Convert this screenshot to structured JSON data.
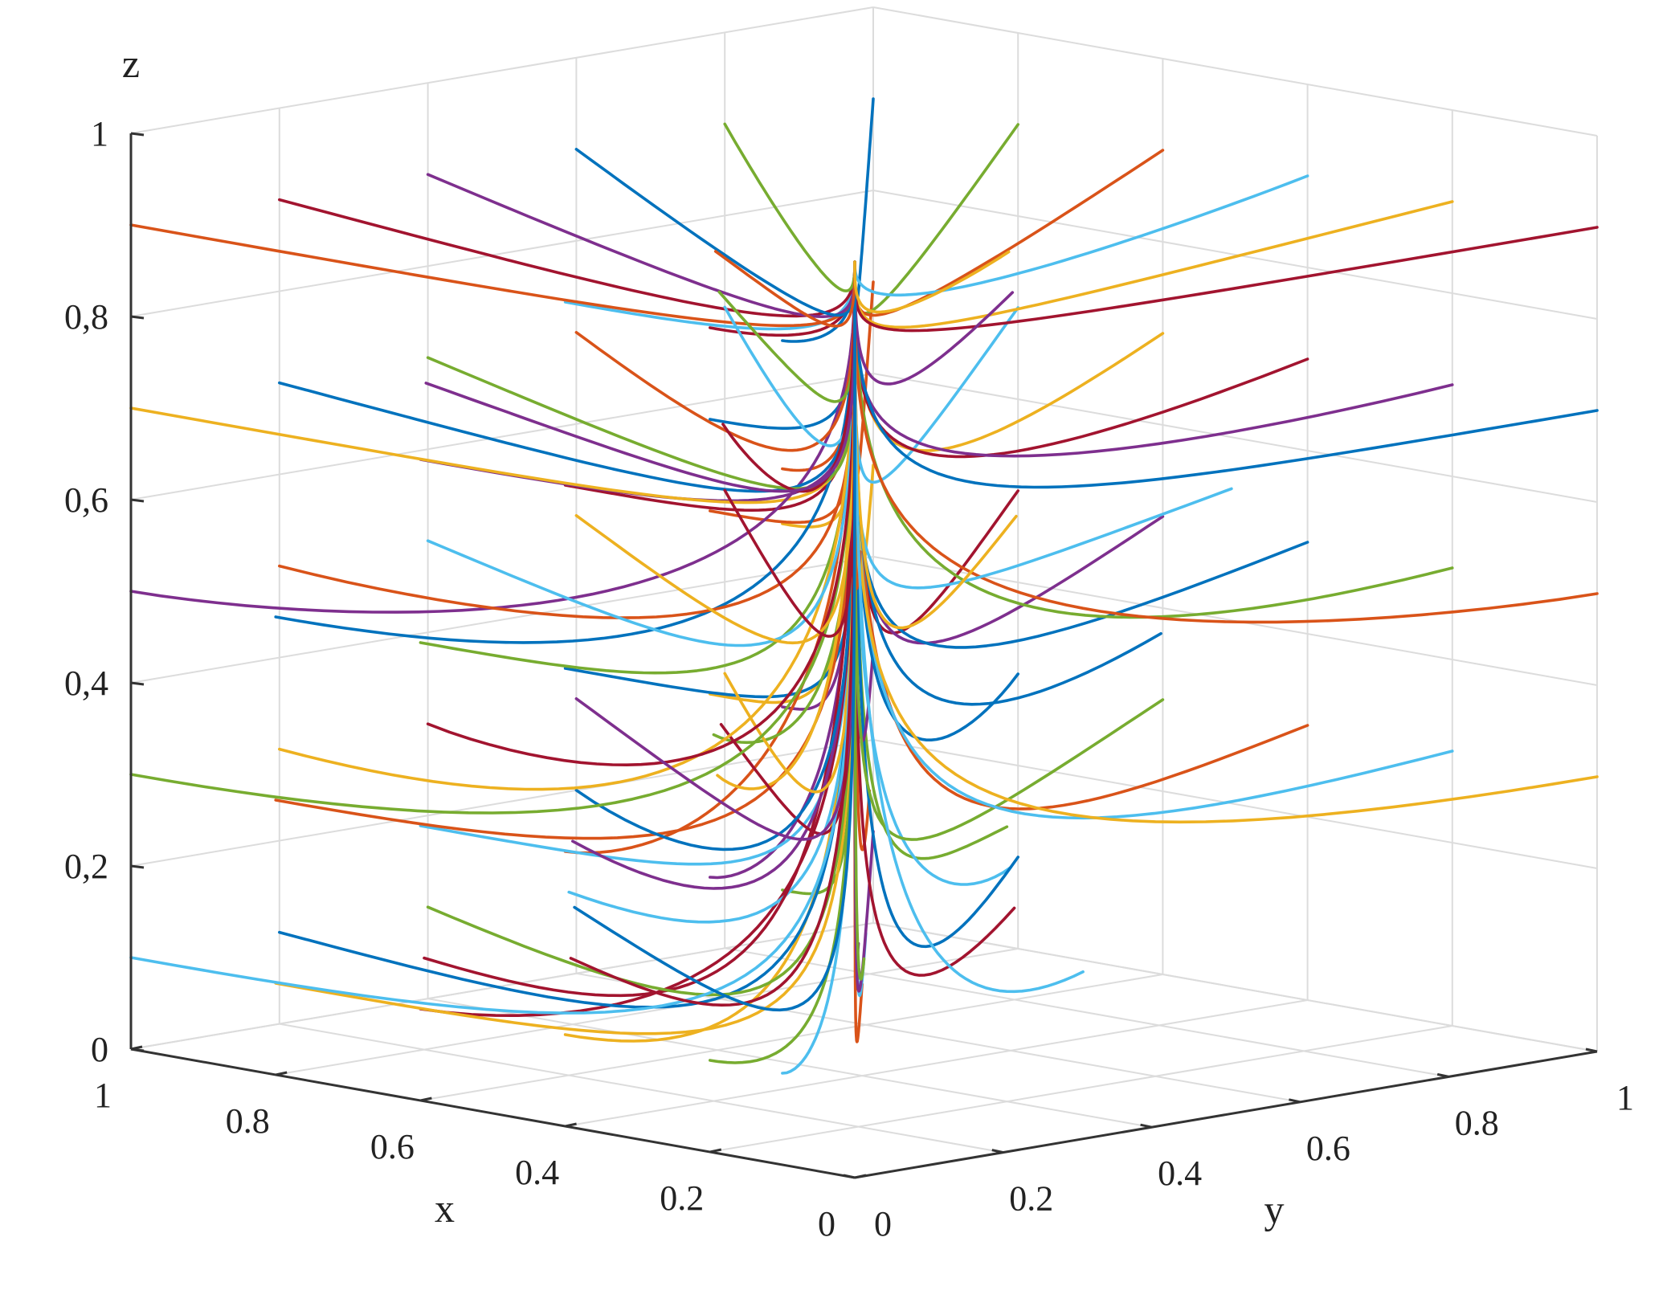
{
  "chart_data": {
    "type": "line",
    "subtype": "3d-phase-trajectories",
    "title": "",
    "xlabel": "x",
    "ylabel": "y",
    "zlabel": "z",
    "xlim": [
      0,
      1
    ],
    "ylim": [
      0,
      1
    ],
    "zlim": [
      0,
      1
    ],
    "x_ticks": [
      0,
      0.2,
      0.4,
      0.6,
      0.8,
      1
    ],
    "y_ticks": [
      0,
      0.2,
      0.4,
      0.6,
      0.8,
      1
    ],
    "z_ticks": [
      0,
      0.2,
      0.4,
      0.6,
      0.8,
      1
    ],
    "x_tick_labels": [
      "0",
      "0.2",
      "0.4",
      "0.6",
      "0.8",
      "1"
    ],
    "y_tick_labels": [
      "0",
      "0.2",
      "0.4",
      "0.6",
      "0.8",
      "1"
    ],
    "z_tick_labels": [
      "0",
      "0,2",
      "0,4",
      "0,6",
      "0,8",
      "1"
    ],
    "grid": true,
    "legend": "none",
    "equilibrium_point": [
      0,
      0,
      1
    ],
    "colors": [
      "#0072BD",
      "#D95319",
      "#EDB120",
      "#7E2F8E",
      "#77AC30",
      "#4DBEEE",
      "#A2142F"
    ],
    "series": [
      {
        "start": [
          0.1,
          0,
          0.9
        ]
      },
      {
        "start": [
          0.1,
          0,
          0.76
        ]
      },
      {
        "start": [
          0.1,
          0,
          0.7
        ]
      },
      {
        "start": [
          0.1,
          0,
          0.5
        ]
      },
      {
        "start": [
          0.1,
          0,
          0.3
        ]
      },
      {
        "start": [
          0.1,
          0,
          0.1
        ]
      },
      {
        "start": [
          0.2,
          0,
          0.9
        ]
      },
      {
        "start": [
          0.2,
          0,
          0.8
        ]
      },
      {
        "start": [
          0.2,
          0,
          0.7
        ]
      },
      {
        "start": [
          0.2,
          0,
          0.5
        ]
      },
      {
        "start": [
          0.2,
          0,
          0.3
        ]
      },
      {
        "start": [
          0.2,
          0,
          0.1
        ]
      },
      {
        "start": [
          0.4,
          0,
          0.9
        ]
      },
      {
        "start": [
          0.4,
          0,
          0.7
        ]
      },
      {
        "start": [
          0.4,
          0,
          0.5
        ]
      },
      {
        "start": [
          0.4,
          0,
          0.3
        ]
      },
      {
        "start": [
          0.4,
          0,
          0.1
        ]
      },
      {
        "start": [
          0.6,
          0,
          0.7
        ]
      },
      {
        "start": [
          0.6,
          0,
          0.5
        ]
      },
      {
        "start": [
          0.6,
          0,
          0.3
        ]
      },
      {
        "start": [
          0.6,
          0,
          0.1
        ]
      },
      {
        "start": [
          0.8,
          0,
          0.5
        ]
      },
      {
        "start": [
          0.8,
          0,
          0.3
        ]
      },
      {
        "start": [
          0.8,
          0,
          0.1
        ]
      },
      {
        "start": [
          0.2,
          0.2,
          0.2
        ]
      },
      {
        "start": [
          0.4,
          0.2,
          0.4
        ]
      },
      {
        "start": [
          0.6,
          0.2,
          0.2
        ]
      },
      {
        "start": [
          0.8,
          0.2,
          0.1
        ]
      },
      {
        "start": [
          1,
          0.2,
          0.1
        ]
      },
      {
        "start": [
          0.4,
          0.4,
          0.1
        ]
      },
      {
        "start": [
          0.6,
          0.4,
          0.3
        ]
      },
      {
        "start": [
          0.8,
          0.4,
          0.2
        ]
      },
      {
        "start": [
          1,
          0.4,
          0.1
        ]
      },
      {
        "start": [
          0.6,
          0.6,
          0.1
        ]
      },
      {
        "start": [
          0.8,
          0.6,
          0.3
        ]
      },
      {
        "start": [
          1,
          0.6,
          0.2
        ]
      },
      {
        "start": [
          0.8,
          0.8,
          0.2
        ]
      },
      {
        "start": [
          1,
          0.8,
          0.3
        ]
      },
      {
        "start": [
          1,
          1,
          0.1
        ]
      },
      {
        "start": [
          0.2,
          0.4,
          0.3
        ]
      },
      {
        "start": [
          0.4,
          0.6,
          0.2
        ]
      },
      {
        "start": [
          0.6,
          0.8,
          0.1
        ]
      },
      {
        "start": [
          0.8,
          1,
          0.1
        ]
      },
      {
        "start": [
          1,
          0,
          0.9
        ]
      },
      {
        "start": [
          1,
          0,
          0.7
        ]
      },
      {
        "start": [
          1,
          0,
          0.5
        ]
      },
      {
        "start": [
          1,
          0,
          0.3
        ]
      },
      {
        "start": [
          1,
          0,
          0.1
        ]
      },
      {
        "start": [
          1,
          0.2,
          0.9
        ]
      },
      {
        "start": [
          1,
          0.2,
          0.7
        ]
      },
      {
        "start": [
          1,
          0.2,
          0.5
        ]
      },
      {
        "start": [
          1,
          0.2,
          0.3
        ]
      },
      {
        "start": [
          1,
          0.4,
          0.9
        ]
      },
      {
        "start": [
          1,
          0.4,
          0.7
        ]
      },
      {
        "start": [
          1,
          0.4,
          0.5
        ]
      },
      {
        "start": [
          1,
          0.4,
          0.3
        ]
      },
      {
        "start": [
          1,
          0.6,
          0.9
        ]
      },
      {
        "start": [
          1,
          0.6,
          0.7
        ]
      },
      {
        "start": [
          1,
          0.6,
          0.5
        ]
      },
      {
        "start": [
          1,
          0.6,
          0.3
        ]
      },
      {
        "start": [
          1,
          0.8,
          0.9
        ]
      },
      {
        "start": [
          1,
          0.8,
          0.7
        ]
      },
      {
        "start": [
          1,
          0.8,
          0.5
        ]
      },
      {
        "start": [
          1,
          1,
          0.9
        ]
      },
      {
        "start": [
          1,
          1,
          0.7
        ]
      },
      {
        "start": [
          1,
          1,
          0.5
        ]
      },
      {
        "start": [
          1,
          1,
          0.3
        ]
      },
      {
        "start": [
          0.8,
          1,
          0.9
        ]
      },
      {
        "start": [
          0.8,
          1,
          0.7
        ]
      },
      {
        "start": [
          0.8,
          1,
          0.5
        ]
      },
      {
        "start": [
          0.8,
          1,
          0.3
        ]
      },
      {
        "start": [
          0.6,
          1,
          0.9
        ]
      },
      {
        "start": [
          0.6,
          1,
          0.7
        ]
      },
      {
        "start": [
          0.6,
          1,
          0.5
        ]
      },
      {
        "start": [
          0.6,
          1,
          0.3
        ]
      },
      {
        "start": [
          0.4,
          1,
          0.9
        ]
      },
      {
        "start": [
          0.4,
          1,
          0.7
        ]
      },
      {
        "start": [
          0.4,
          1,
          0.5
        ]
      },
      {
        "start": [
          0.4,
          1,
          0.3
        ]
      },
      {
        "start": [
          0.2,
          1,
          0.9
        ]
      },
      {
        "start": [
          0.2,
          1,
          0.7
        ]
      },
      {
        "start": [
          0.2,
          1,
          0.5
        ]
      },
      {
        "start": [
          0.2,
          1,
          0.3
        ]
      },
      {
        "start": [
          0,
          1,
          0.9
        ]
      },
      {
        "start": [
          0,
          1,
          0.7
        ]
      },
      {
        "start": [
          0,
          1,
          0.5
        ]
      },
      {
        "start": [
          0,
          1,
          0.3
        ]
      },
      {
        "start": [
          0.5,
          0.7,
          0.8
        ]
      },
      {
        "start": [
          0.7,
          0.5,
          0.8
        ]
      },
      {
        "start": [
          0.3,
          0.8,
          0.6
        ]
      },
      {
        "start": [
          0.9,
          0.7,
          0.6
        ]
      },
      {
        "start": [
          0.5,
          0.9,
          0.4
        ]
      },
      {
        "start": [
          0.3,
          0.3,
          0.6
        ]
      },
      {
        "start": [
          0.7,
          0.9,
          0.5
        ]
      },
      {
        "start": [
          0.9,
          0.3,
          0.7
        ]
      },
      {
        "start": [
          0.5,
          0.5,
          0.1
        ]
      },
      {
        "start": [
          0.3,
          0.6,
          0.1
        ]
      },
      {
        "start": [
          0.7,
          0.3,
          0.1
        ]
      },
      {
        "start": [
          0.9,
          0.5,
          0.1
        ]
      },
      {
        "start": [
          0.5,
          0.3,
          0.9
        ]
      },
      {
        "start": [
          0.3,
          0.5,
          0.9
        ]
      }
    ]
  }
}
